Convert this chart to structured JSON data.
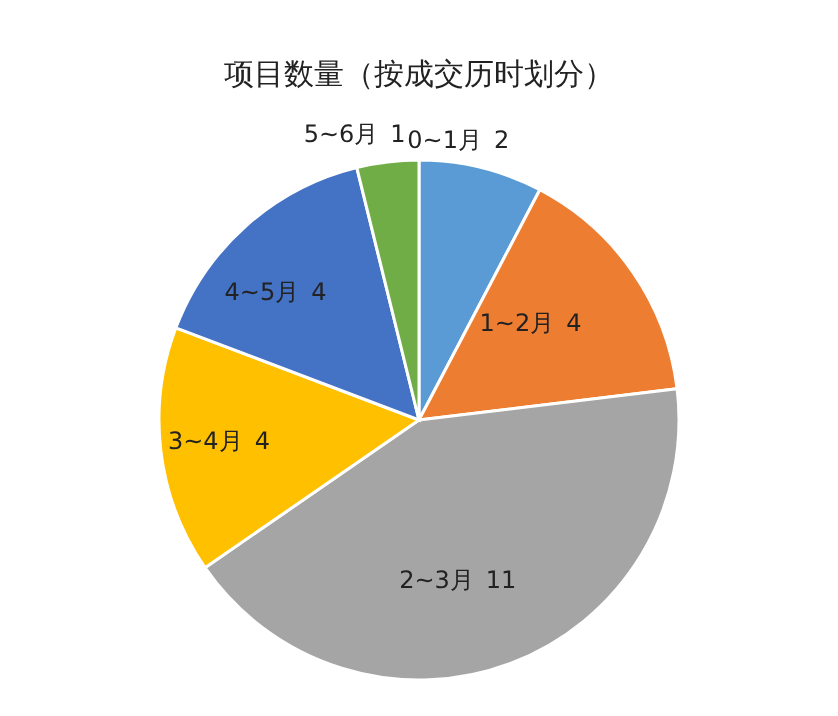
{
  "chart_data": {
    "type": "pie",
    "title": "项目数量（按成交历时划分）",
    "categories": [
      "0~1月",
      "1~2月",
      "2~3月",
      "3~4月",
      "4~5月",
      "5~6月"
    ],
    "values": [
      2,
      4,
      11,
      4,
      4,
      1
    ],
    "colors": [
      "#5b9bd5",
      "#ed7d31",
      "#a5a5a5",
      "#ffc000",
      "#4472c4",
      "#70ad47"
    ],
    "data_labels": true
  }
}
